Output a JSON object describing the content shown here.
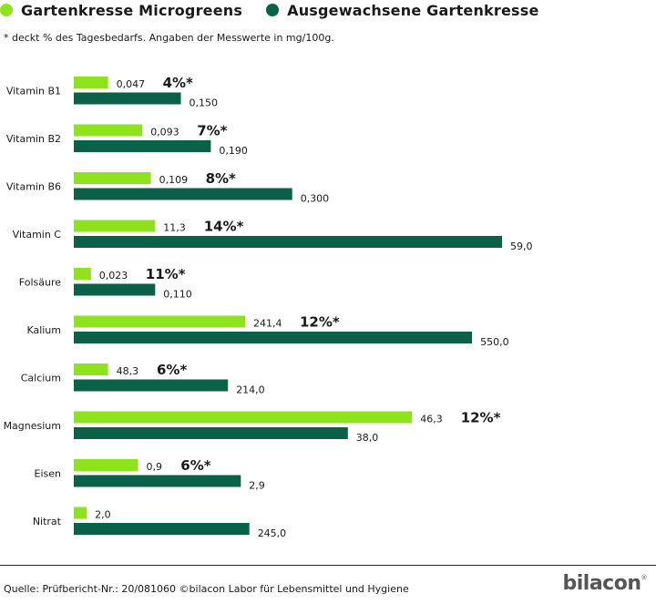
{
  "legend": [
    {
      "label": "Gartenkresse Microgreens",
      "color": "#8fe31c"
    },
    {
      "label": "Ausgewachsene Gartenkresse",
      "color": "#0a6147"
    }
  ],
  "note": "* deckt % des Tagesbedarfs. Angaben der Messwerte in mg/100g.",
  "source": "Quelle: Prüfbericht-Nr.: 20/081060 ©bilacon Labor für Lebensmittel und Hygiene",
  "logo": {
    "text": "bilacon",
    "mark": "®"
  },
  "colors": {
    "light": "#8fe31c",
    "dark": "#0a6147"
  },
  "chart_data": {
    "type": "bar",
    "orientation": "horizontal",
    "categories": [
      "Vitamin B1",
      "Vitamin B2",
      "Vitamin B6",
      "Vitamin C",
      "Folsäure",
      "Kalium",
      "Calcium",
      "Magnesium",
      "Eisen",
      "Nitrat"
    ],
    "series": [
      {
        "name": "Gartenkresse Microgreens",
        "values": [
          0.047,
          0.093,
          0.109,
          11.3,
          0.023,
          241.4,
          48.3,
          46.3,
          0.9,
          2.0
        ],
        "labels": [
          "0,047",
          "0,093",
          "0,109",
          "11,3",
          "0,023",
          "241,4",
          "48,3",
          "46,3",
          "0,9",
          "2,0"
        ],
        "relative_length": [
          0.08,
          0.16,
          0.18,
          0.19,
          0.04,
          0.4,
          0.08,
          0.79,
          0.15,
          0.03
        ]
      },
      {
        "name": "Ausgewachsene Gartenkresse",
        "values": [
          0.15,
          0.19,
          0.3,
          59.0,
          0.11,
          550.0,
          214.0,
          38.0,
          2.9,
          245.0
        ],
        "labels": [
          "0,150",
          "0,190",
          "0,300",
          "59,0",
          "0,110",
          "550,0",
          "214,0",
          "38,0",
          "2,9",
          "245,0"
        ],
        "relative_length": [
          0.25,
          0.32,
          0.51,
          1.0,
          0.19,
          0.93,
          0.36,
          0.64,
          0.39,
          0.41
        ]
      }
    ],
    "daily_value_percent": [
      "4%*",
      "7%*",
      "8%*",
      "14%*",
      "11%*",
      "12%*",
      "6%*",
      "12%*",
      "6%*",
      ""
    ],
    "note": "relative_length = bar length relative to the longest bar; each nutrient is drawn on its own scale"
  }
}
